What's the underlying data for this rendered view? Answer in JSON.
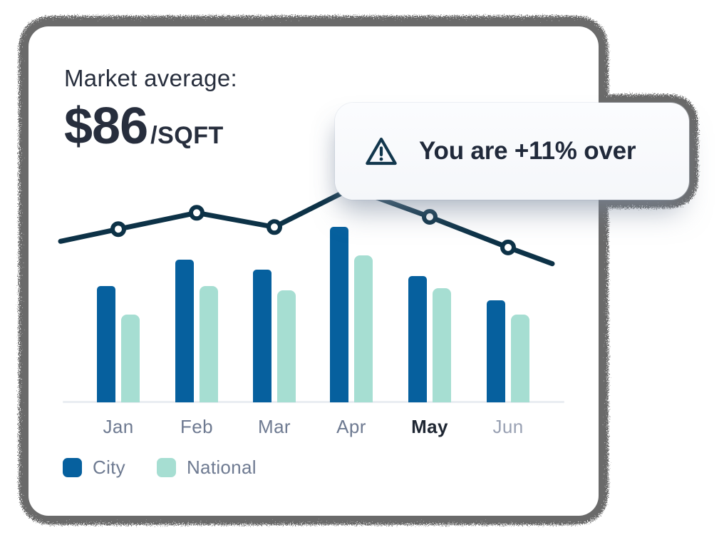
{
  "card": {
    "title": "Market average:",
    "price_value": "$86",
    "price_unit": "/SQFT"
  },
  "callout": {
    "text": "You are +11% over",
    "icon": "warning-triangle-icon"
  },
  "legend": [
    {
      "label": "City",
      "color": "#06609e"
    },
    {
      "label": "National",
      "color": "#a6ded2"
    }
  ],
  "colors": {
    "text_dark": "#272e3d",
    "text_muted": "#6e7a91",
    "text_muted_light": "#99a1b3",
    "axis_line": "#e9edf2",
    "card_bg": "#ffffff",
    "callout_bg": "#f8fafc",
    "trend_line": "#0d3247"
  },
  "chart_data": {
    "type": "bar",
    "subtype": "grouped bars with overlay trend line",
    "title": "Market average: $86/SQFT",
    "categories": [
      "Jan",
      "Feb",
      "Mar",
      "Apr",
      "May",
      "Jun"
    ],
    "series": [
      {
        "name": "City",
        "color": "#06609e",
        "values": [
          57,
          70,
          65,
          86,
          62,
          50
        ]
      },
      {
        "name": "National",
        "color": "#a6ded2",
        "values": [
          43,
          57,
          55,
          72,
          56,
          43
        ]
      }
    ],
    "line_series": {
      "name": "Market average trend",
      "color": "#0d3247",
      "values": [
        85,
        93,
        86,
        105,
        91,
        76
      ],
      "edge_start_value": 79,
      "edge_end_value": 68,
      "markers": [
        true,
        true,
        true,
        false,
        true,
        true
      ]
    },
    "highlighted_category": "May",
    "muted_categories": [
      "Jun"
    ],
    "xlabel": "",
    "ylabel": "",
    "ylim": [
      0,
      110
    ],
    "value_unit": "USD per sqft (estimated; chart shows no numeric axis)",
    "grid": false,
    "legend_position": "bottom-left"
  }
}
